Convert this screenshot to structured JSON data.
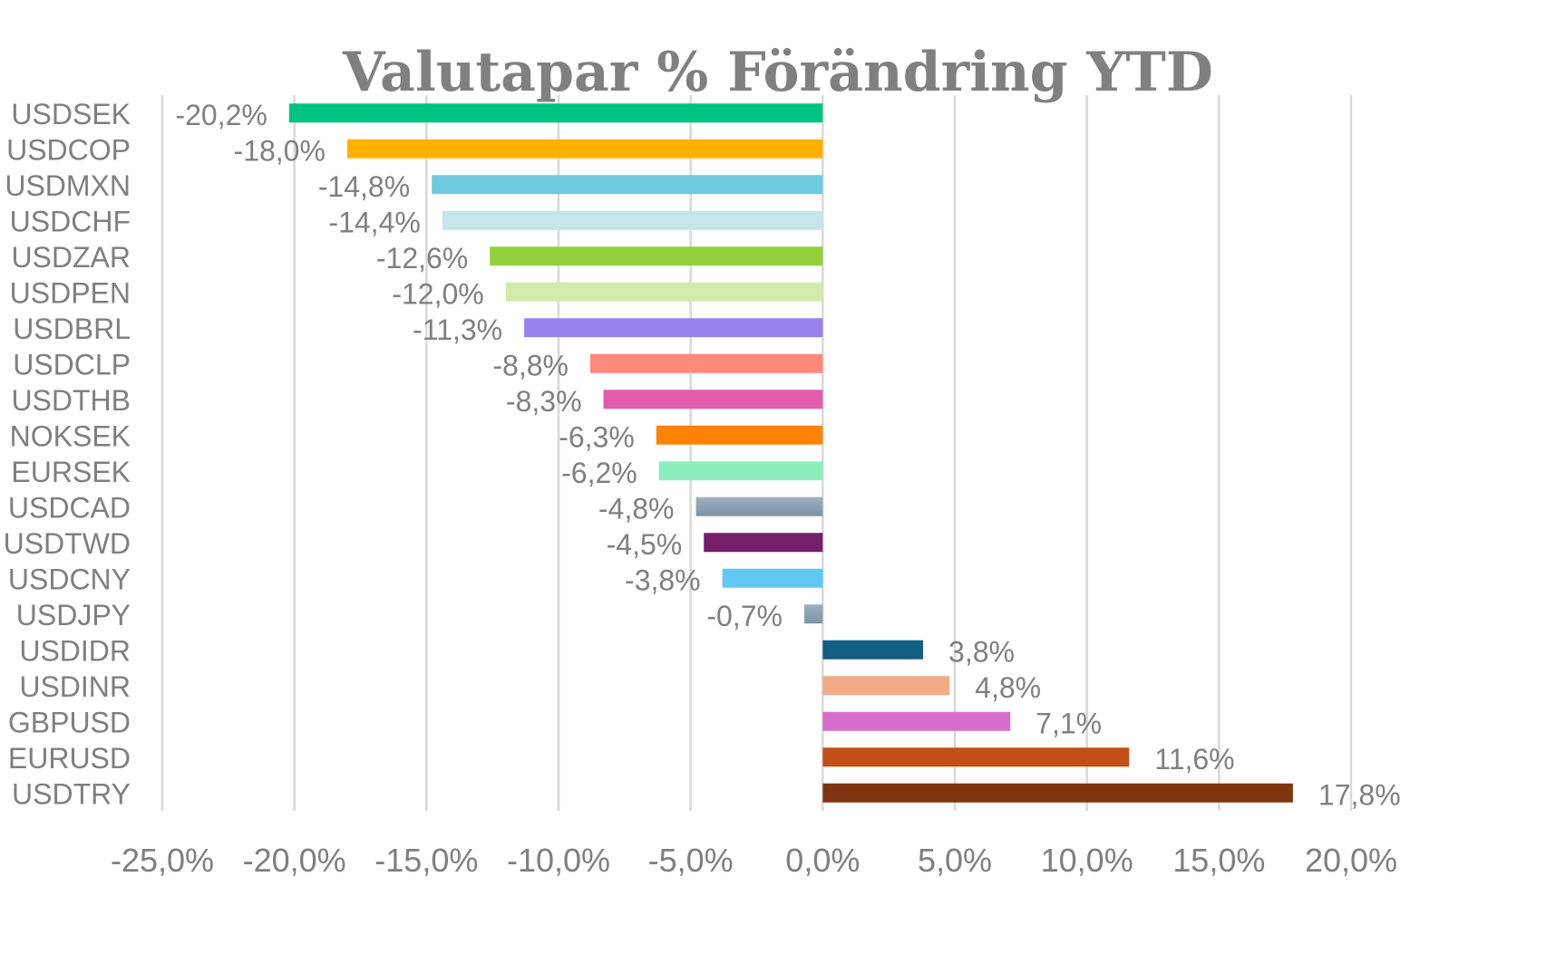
{
  "chart_data": {
    "type": "bar",
    "orientation": "horizontal",
    "title": "Valutapar %  Förändring YTD",
    "xlabel": "",
    "ylabel": "",
    "xlim": [
      -25,
      20
    ],
    "x_ticks": [
      -25,
      -20,
      -15,
      -10,
      -5,
      0,
      5,
      10,
      15,
      20
    ],
    "x_tick_labels": [
      "-25,0%",
      "-20,0%",
      "-15,0%",
      "-10,0%",
      "-5,0%",
      "0,0%",
      "5,0%",
      "10,0%",
      "15,0%",
      "20,0%"
    ],
    "grid": true,
    "legend": "none",
    "categories": [
      "USDSEK",
      "USDCOP",
      "USDMXN",
      "USDCHF",
      "USDZAR",
      "USDPEN",
      "USDBRL",
      "USDCLP",
      "USDTHB",
      "NOKSEK",
      "EURSEK",
      "USDCAD",
      "USDTWD",
      "USDCNY",
      "USDJPY",
      "USDIDR",
      "USDINR",
      "GBPUSD",
      "EURUSD",
      "USDTRY"
    ],
    "values": [
      -20.2,
      -18.0,
      -14.8,
      -14.4,
      -12.6,
      -12.0,
      -11.3,
      -8.8,
      -8.3,
      -6.3,
      -6.2,
      -4.8,
      -4.5,
      -3.8,
      -0.7,
      3.8,
      4.8,
      7.1,
      11.6,
      17.8
    ],
    "value_labels": [
      "-20,2%",
      "-18,0%",
      "-14,8%",
      "-14,4%",
      "-12,6%",
      "-12,0%",
      "-11,3%",
      "-8,8%",
      "-8,3%",
      "-6,3%",
      "-6,2%",
      "-4,8%",
      "-4,5%",
      "-3,8%",
      "-0,7%",
      "3,8%",
      "4,8%",
      "7,1%",
      "11,6%",
      "17,8%"
    ],
    "colors": [
      "#00c281",
      "#ffb000",
      "#6fcadf",
      "#c2e6ea",
      "#92d03c",
      "#d2ebaa",
      "#9a82ee",
      "#fe887a",
      "#e25bae",
      "#fd8300",
      "#8ceebd",
      "#8aa0b4",
      "#751e6b",
      "#60c9f3",
      "#8aa0b4",
      "#135f84",
      "#f2aa84",
      "#d86ecb",
      "#c24f15",
      "#803510"
    ]
  }
}
